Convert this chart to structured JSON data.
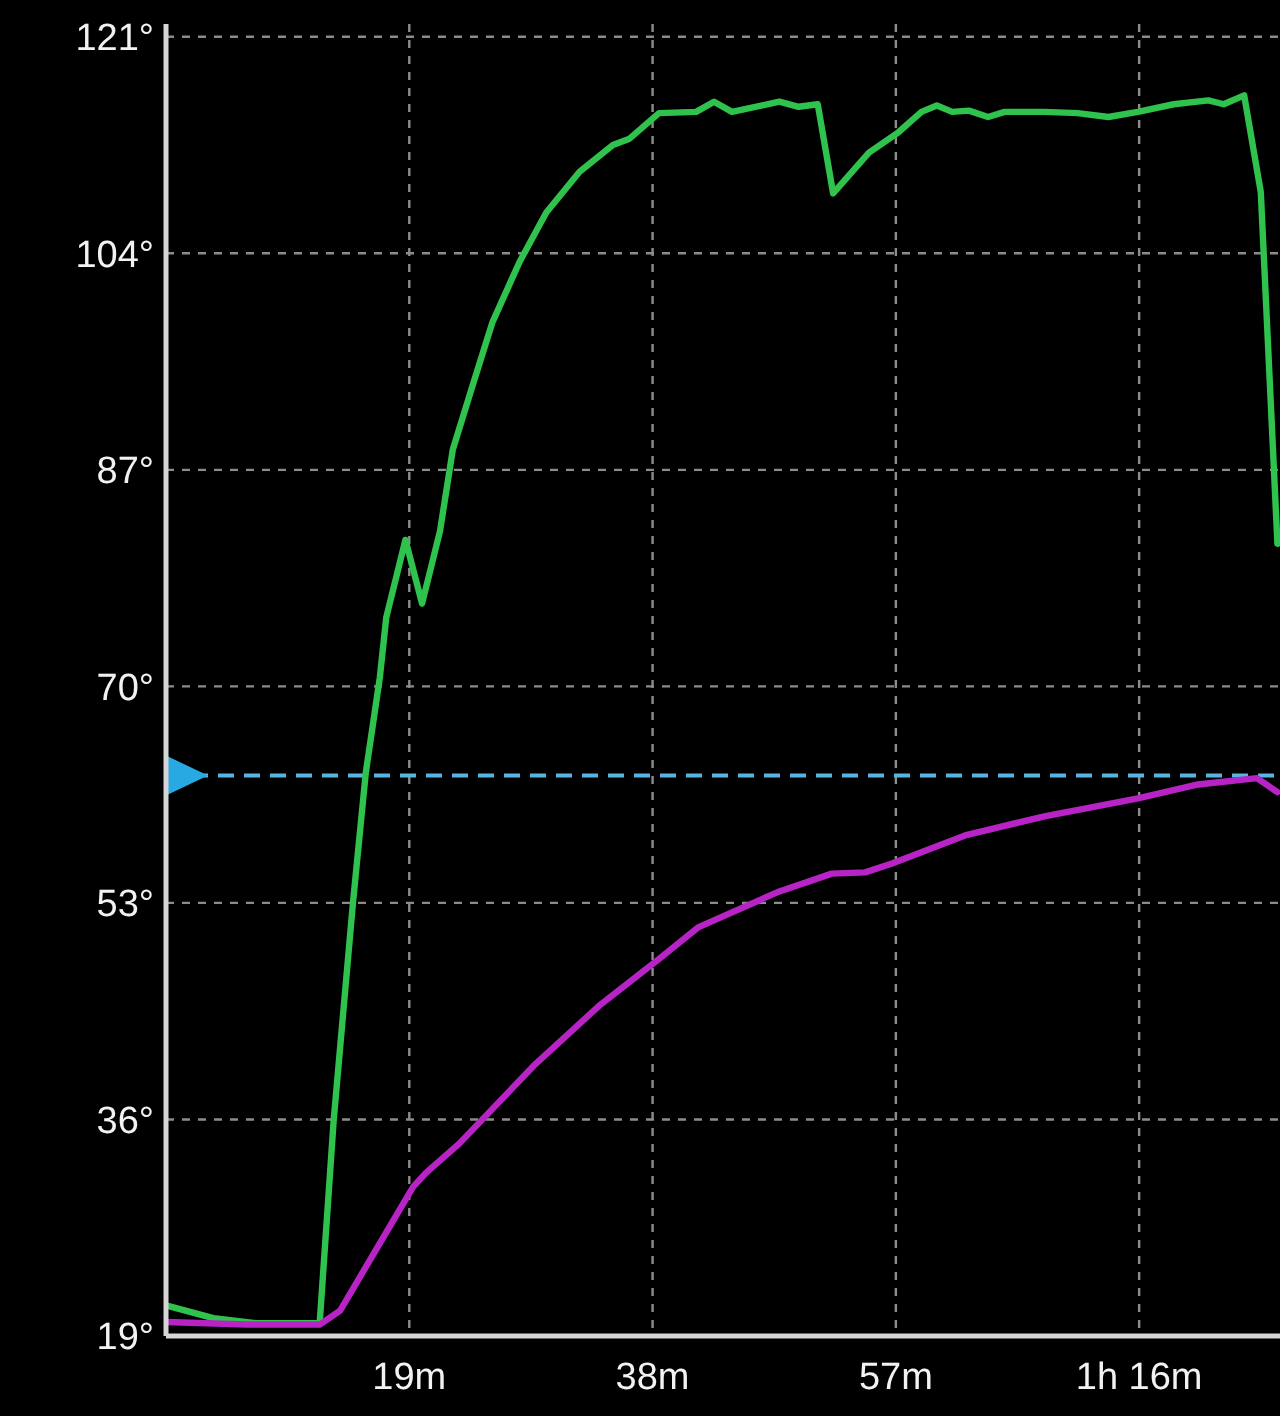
{
  "chart_data": {
    "type": "line",
    "xlim": [
      0,
      87
    ],
    "xticks": [
      {
        "value": 19,
        "label": "19m"
      },
      {
        "value": 38,
        "label": "38m"
      },
      {
        "value": 57,
        "label": "57m"
      },
      {
        "value": 76,
        "label": "1h 16m"
      }
    ],
    "ylim": [
      19,
      122
    ],
    "yticks": [
      {
        "value": 19,
        "label": "19°"
      },
      {
        "value": 36,
        "label": "36°"
      },
      {
        "value": 53,
        "label": "53°"
      },
      {
        "value": 70,
        "label": "70°"
      },
      {
        "value": 87,
        "label": "87°"
      },
      {
        "value": 104,
        "label": "104°"
      },
      {
        "value": 121,
        "label": "121°"
      }
    ],
    "grid": true,
    "marker": "none",
    "line_style": "solid",
    "ref_lines": [
      {
        "axis": "y",
        "value": 63,
        "color": "#5ab4e0",
        "line_style": "dashed"
      }
    ],
    "series": [
      {
        "color": "#2fc24c",
        "x": [
          0,
          3.7,
          7,
          12,
          13.1,
          14.6,
          15.6,
          16.7,
          17.2,
          18.7,
          20,
          21.4,
          22.4,
          24,
          25.5,
          27.6,
          29.7,
          32.3,
          34.9,
          36.2,
          38.5,
          41.4,
          42.8,
          44.2,
          47.9,
          49.4,
          50.9,
          52.1,
          54.9,
          57.2,
          59,
          60.2,
          61.4,
          62.7,
          64.2,
          65.5,
          68.6,
          71.2,
          73.6,
          75.9,
          78.7,
          81.4,
          82.6,
          84.2,
          85.5,
          86.8
        ],
        "values": [
          21.4,
          20.4,
          20,
          20,
          36,
          53,
          63.2,
          70.7,
          75.4,
          81.5,
          76.5,
          82.2,
          88.6,
          93.8,
          98.6,
          103.3,
          107.2,
          110.4,
          112.5,
          113,
          115,
          115.1,
          115.9,
          115.1,
          115.9,
          115.5,
          115.7,
          108.7,
          111.9,
          113.5,
          115.1,
          115.6,
          115.1,
          115.2,
          114.7,
          115.1,
          115.1,
          115,
          114.7,
          115.1,
          115.7,
          116,
          115.7,
          116.4,
          108.8,
          81.2
        ]
      },
      {
        "color": "#b823c6",
        "x": [
          0,
          6.3,
          12,
          13.6,
          19.3,
          20.3,
          22.9,
          28.7,
          33.8,
          38.5,
          41.6,
          47.9,
          52,
          54.6,
          56.7,
          62.4,
          68.6,
          75.9,
          80.6,
          85.2,
          86.8
        ],
        "values": [
          20.1,
          19.9,
          19.9,
          21,
          30.7,
          31.8,
          34.1,
          40.2,
          44.9,
          48.6,
          51.1,
          53.9,
          55.3,
          55.4,
          56.1,
          58.3,
          59.8,
          61.2,
          62.3,
          62.8,
          61.7
        ]
      }
    ]
  }
}
